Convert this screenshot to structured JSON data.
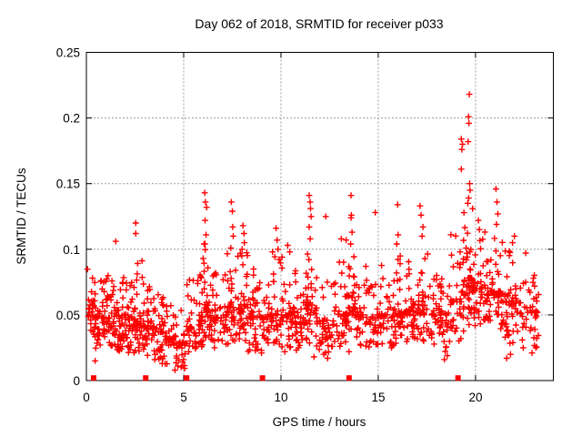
{
  "window": {
    "title": "Day 062 of 2018, SRMTID for receiver p033"
  },
  "chart_data": {
    "type": "scatter",
    "title": "Day 062 of 2018, SRMTID for receiver p033",
    "xlabel": "GPS time / hours",
    "ylabel": "SRMTID / TECUs",
    "xlim": [
      0,
      24
    ],
    "ylim": [
      0,
      0.25
    ],
    "xticks": [
      0,
      5,
      10,
      15,
      20
    ],
    "xtick_labels": [
      "0",
      "5",
      "10",
      "15",
      "20"
    ],
    "yticks": [
      0,
      0.05,
      0.1,
      0.15,
      0.2,
      0.25
    ],
    "ytick_labels": [
      "0",
      "0.05",
      "0.1",
      "0.15",
      "0.2",
      "0.25"
    ],
    "grid": true,
    "legend": "none",
    "marker": "plus",
    "marker_color": "#ff0000",
    "grid_color": "#9c9c9c",
    "axis_color": "#000000",
    "background_color": "#ffffff",
    "seed": 20180622,
    "note": "Dense red plus-marker scatter of SRMTID vs GPS time; values clustered 0.02-0.09 TECUs with narrow spike clusters, max 0.218 near 19.7 h. Red filled squares on the baseline mark y=0 events.",
    "cluster_bins": [
      [
        0.03,
        0.35,
        20,
        0.035,
        0.055,
        0.091
      ],
      [
        0.35,
        1.0,
        52,
        0.022,
        0.048,
        0.082
      ],
      [
        1.0,
        1.5,
        40,
        0.025,
        0.048,
        0.086
      ],
      [
        1.5,
        2.0,
        42,
        0.022,
        0.045,
        0.08
      ],
      [
        2.0,
        2.5,
        40,
        0.02,
        0.042,
        0.078
      ],
      [
        2.5,
        3.0,
        42,
        0.02,
        0.043,
        0.092
      ],
      [
        3.0,
        3.5,
        40,
        0.018,
        0.04,
        0.072
      ],
      [
        3.5,
        4.0,
        38,
        0.015,
        0.037,
        0.066
      ],
      [
        4.0,
        4.6,
        34,
        0.012,
        0.032,
        0.06
      ],
      [
        4.6,
        5.15,
        26,
        0.008,
        0.028,
        0.056
      ],
      [
        5.15,
        5.65,
        32,
        0.02,
        0.04,
        0.077
      ],
      [
        5.65,
        6.0,
        30,
        0.025,
        0.045,
        0.088
      ],
      [
        6.0,
        6.35,
        30,
        0.028,
        0.055,
        0.105
      ],
      [
        6.35,
        7.2,
        52,
        0.025,
        0.048,
        0.082
      ],
      [
        7.2,
        7.7,
        38,
        0.028,
        0.055,
        0.1
      ],
      [
        7.7,
        8.3,
        44,
        0.03,
        0.055,
        0.1
      ],
      [
        8.3,
        9.3,
        62,
        0.022,
        0.048,
        0.086
      ],
      [
        9.3,
        10.0,
        46,
        0.025,
        0.05,
        0.098
      ],
      [
        10.0,
        10.7,
        44,
        0.025,
        0.05,
        0.096
      ],
      [
        10.7,
        11.3,
        40,
        0.022,
        0.048,
        0.085
      ],
      [
        11.3,
        11.8,
        36,
        0.028,
        0.055,
        0.105
      ],
      [
        11.8,
        12.8,
        56,
        0.02,
        0.045,
        0.08
      ],
      [
        12.8,
        13.4,
        36,
        0.025,
        0.05,
        0.092
      ],
      [
        13.4,
        13.9,
        36,
        0.028,
        0.055,
        0.102
      ],
      [
        13.9,
        14.9,
        56,
        0.025,
        0.05,
        0.09
      ],
      [
        14.9,
        15.9,
        56,
        0.025,
        0.05,
        0.092
      ],
      [
        15.9,
        16.3,
        30,
        0.028,
        0.05,
        0.096
      ],
      [
        16.3,
        17.0,
        44,
        0.028,
        0.052,
        0.092
      ],
      [
        17.0,
        17.6,
        40,
        0.03,
        0.058,
        0.108
      ],
      [
        17.6,
        18.7,
        64,
        0.022,
        0.05,
        0.092
      ],
      [
        18.7,
        19.4,
        48,
        0.03,
        0.06,
        0.112
      ],
      [
        19.4,
        19.9,
        46,
        0.04,
        0.078,
        0.135
      ],
      [
        19.9,
        20.6,
        50,
        0.04,
        0.07,
        0.118
      ],
      [
        20.6,
        21.4,
        52,
        0.038,
        0.068,
        0.12
      ],
      [
        21.4,
        22.3,
        56,
        0.028,
        0.06,
        0.108
      ],
      [
        22.3,
        23.25,
        46,
        0.022,
        0.052,
        0.098
      ]
    ],
    "outliers": [
      [
        1.51,
        0.106
      ],
      [
        2.54,
        0.12
      ],
      [
        2.54,
        0.112
      ],
      [
        6.08,
        0.143
      ],
      [
        6.12,
        0.136
      ],
      [
        6.18,
        0.132
      ],
      [
        6.1,
        0.122
      ],
      [
        6.15,
        0.111
      ],
      [
        6.05,
        0.104
      ],
      [
        7.45,
        0.136
      ],
      [
        7.5,
        0.129
      ],
      [
        7.52,
        0.117
      ],
      [
        7.55,
        0.11
      ],
      [
        7.42,
        0.101
      ],
      [
        8.05,
        0.118
      ],
      [
        8.1,
        0.112
      ],
      [
        8.12,
        0.105
      ],
      [
        8.0,
        0.1
      ],
      [
        9.75,
        0.116
      ],
      [
        9.8,
        0.107
      ],
      [
        9.85,
        0.1
      ],
      [
        10.35,
        0.103
      ],
      [
        10.45,
        0.098
      ],
      [
        11.45,
        0.141
      ],
      [
        11.5,
        0.136
      ],
      [
        11.52,
        0.131
      ],
      [
        11.55,
        0.125
      ],
      [
        11.45,
        0.117
      ],
      [
        11.5,
        0.108
      ],
      [
        12.3,
        0.125
      ],
      [
        13.1,
        0.108
      ],
      [
        13.35,
        0.107
      ],
      [
        13.6,
        0.141
      ],
      [
        13.62,
        0.126
      ],
      [
        13.6,
        0.124
      ],
      [
        13.65,
        0.113
      ],
      [
        13.58,
        0.104
      ],
      [
        14.85,
        0.128
      ],
      [
        15.95,
        0.104
      ],
      [
        16.0,
        0.134
      ],
      [
        16.02,
        0.111
      ],
      [
        17.15,
        0.133
      ],
      [
        17.2,
        0.126
      ],
      [
        17.3,
        0.117
      ],
      [
        17.25,
        0.11
      ],
      [
        19.27,
        0.184
      ],
      [
        19.33,
        0.18
      ],
      [
        19.3,
        0.176
      ],
      [
        19.27,
        0.161
      ],
      [
        19.68,
        0.218
      ],
      [
        19.64,
        0.201
      ],
      [
        19.66,
        0.196
      ],
      [
        19.62,
        0.182
      ],
      [
        19.7,
        0.15
      ],
      [
        19.72,
        0.145
      ],
      [
        19.65,
        0.139
      ],
      [
        19.6,
        0.135
      ],
      [
        20.15,
        0.122
      ],
      [
        20.2,
        0.115
      ],
      [
        21.05,
        0.146
      ],
      [
        21.1,
        0.136
      ],
      [
        21.15,
        0.127
      ],
      [
        21.08,
        0.119
      ],
      [
        21.9,
        0.105
      ],
      [
        22.0,
        0.11
      ]
    ],
    "low_outliers": [
      [
        0.45,
        0.015
      ],
      [
        3.9,
        0.013
      ],
      [
        4.55,
        0.008
      ],
      [
        4.7,
        0.011
      ],
      [
        4.95,
        0.014
      ],
      [
        5.0,
        0.016
      ],
      [
        9.0,
        0.021
      ],
      [
        10.2,
        0.022
      ],
      [
        11.7,
        0.018
      ],
      [
        12.2,
        0.02
      ],
      [
        12.4,
        0.017
      ],
      [
        13.5,
        0.022
      ],
      [
        18.4,
        0.016
      ],
      [
        18.55,
        0.019
      ],
      [
        21.6,
        0.017
      ],
      [
        21.8,
        0.02
      ],
      [
        22.9,
        0.021
      ],
      [
        23.1,
        0.025
      ]
    ],
    "zero_markers": {
      "style": "filled-square",
      "color": "#ff0000",
      "x": [
        0.37,
        3.05,
        5.15,
        9.05,
        13.5,
        19.1
      ]
    }
  }
}
